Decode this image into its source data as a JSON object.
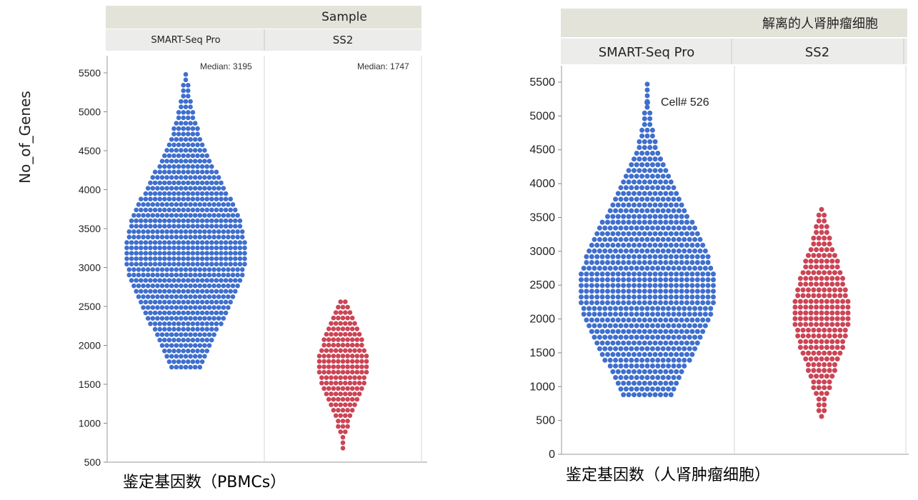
{
  "chart_data": [
    {
      "type": "scatter",
      "style": "beeswarm",
      "header": "Sample",
      "columns": [
        "SMART-Seq Pro",
        "SS2"
      ],
      "ylabel": "No_of_Genes",
      "xlabel": "鉴定基因数（PBMCs）",
      "ylim": [
        500,
        5700
      ],
      "yticks": [
        500,
        1000,
        1500,
        2000,
        2500,
        3000,
        3500,
        4000,
        4500,
        5000,
        5500
      ],
      "annotations": [
        "Median: 3195",
        "Median: 1747"
      ],
      "series": [
        {
          "name": "SMART-Seq Pro",
          "color": "#3f6fce",
          "median": 3195,
          "min": 1720,
          "max": 5530
        },
        {
          "name": "SS2",
          "color": "#cc4455",
          "median": 1747,
          "min": 680,
          "max": 2620
        }
      ]
    },
    {
      "type": "scatter",
      "style": "beeswarm",
      "header": "解离的人肾肿瘤细胞",
      "columns": [
        "SMART-Seq Pro",
        "SS2"
      ],
      "xlabel": "鉴定基因数（人肾肿瘤细胞）",
      "ylim": [
        0,
        5800
      ],
      "yticks": [
        0,
        500,
        1000,
        1500,
        2000,
        2500,
        3000,
        3500,
        4000,
        4500,
        5000,
        5500
      ],
      "annotations": [
        "Cell# 526"
      ],
      "series": [
        {
          "name": "SMART-Seq Pro",
          "color": "#3f6fce",
          "median": 2450,
          "min": 880,
          "max": 5550
        },
        {
          "name": "SS2",
          "color": "#cc4455",
          "median": 2100,
          "min": 560,
          "max": 3700
        }
      ]
    }
  ]
}
